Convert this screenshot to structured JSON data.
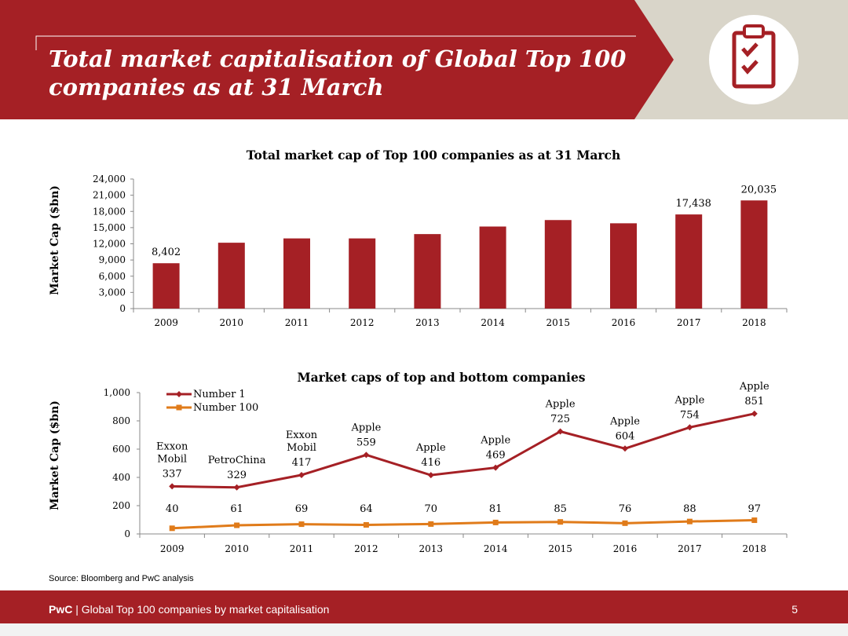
{
  "header": {
    "title_line1": "Total market capitalisation of Global Top 100",
    "title_line2": "companies as at 31 March",
    "icon": "clipboard-checklist-icon"
  },
  "colors": {
    "brand_red": "#a52025",
    "banner_grey": "#d9d5c9",
    "series_number1": "#a52025",
    "series_number100": "#e07b1a"
  },
  "chart_data": [
    {
      "type": "bar",
      "title": "Total market cap of Top 100 companies as at 31 March",
      "xlabel": "",
      "ylabel": "Market Cap ($bn)",
      "ylim": [
        0,
        24000
      ],
      "yticks": [
        0,
        3000,
        6000,
        9000,
        12000,
        15000,
        18000,
        21000,
        24000
      ],
      "ytick_labels": [
        "0",
        "3,000",
        "6,000",
        "9,000",
        "12,000",
        "15,000",
        "18,000",
        "21,000",
        "24,000"
      ],
      "categories": [
        "2009",
        "2010",
        "2011",
        "2012",
        "2013",
        "2014",
        "2015",
        "2016",
        "2017",
        "2018"
      ],
      "values": [
        8402,
        12200,
        13000,
        13000,
        13800,
        15200,
        16400,
        15800,
        17438,
        20035
      ],
      "data_labels": [
        "8,402",
        "",
        "",
        "",
        "",
        "",
        "",
        "",
        "17,438",
        "20,035"
      ],
      "grid": false
    },
    {
      "type": "line",
      "title": "Market caps of top and bottom companies",
      "xlabel": "",
      "ylabel": "Market Cap ($bn)",
      "ylim": [
        0,
        1000
      ],
      "yticks": [
        0,
        200,
        400,
        600,
        800,
        1000
      ],
      "ytick_labels": [
        "0",
        "200",
        "400",
        "600",
        "800",
        "1,000"
      ],
      "categories": [
        "2009",
        "2010",
        "2011",
        "2012",
        "2013",
        "2014",
        "2015",
        "2016",
        "2017",
        "2018"
      ],
      "legend_position": "top-left",
      "grid": false,
      "series": [
        {
          "name": "Number 1",
          "values": [
            337,
            329,
            417,
            559,
            416,
            469,
            725,
            604,
            754,
            851
          ],
          "data_labels": [
            "337",
            "329",
            "417",
            "559",
            "416",
            "469",
            "725",
            "604",
            "754",
            "851"
          ],
          "companies": [
            "Exxon\nMobil",
            "PetroChina",
            "Exxon\nMobil",
            "Apple",
            "Apple",
            "Apple",
            "Apple",
            "Apple",
            "Apple",
            "Apple"
          ]
        },
        {
          "name": "Number 100",
          "values": [
            40,
            61,
            69,
            64,
            70,
            81,
            85,
            76,
            88,
            97
          ],
          "data_labels": [
            "40",
            "61",
            "69",
            "64",
            "70",
            "81",
            "85",
            "76",
            "88",
            "97"
          ]
        }
      ]
    }
  ],
  "source": "Source: Bloomberg and PwC analysis",
  "footer": {
    "brand": "PwC",
    "text": " | Global Top 100 companies by market capitalisation",
    "page_number": "5"
  }
}
